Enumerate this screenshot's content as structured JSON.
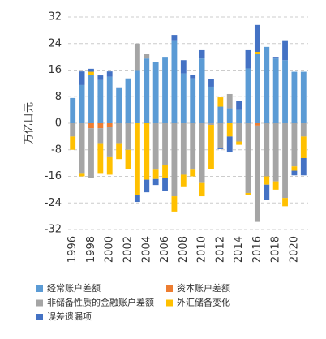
{
  "chart_data": {
    "type": "bar",
    "stacked": true,
    "y_label": "万亿日元",
    "categories": [
      "1996",
      null,
      "1998",
      null,
      "2000",
      null,
      "2002",
      null,
      "2004",
      null,
      "2006",
      null,
      "2008",
      null,
      "2010",
      null,
      "2012",
      null,
      "2014",
      null,
      "2016",
      null,
      "2018",
      null,
      "2020",
      null
    ],
    "series": [
      {
        "name": "经常账户差额",
        "color": "#5b9bd5",
        "values": [
          7.6,
          11.5,
          14.5,
          13,
          14,
          10.5,
          13.5,
          16,
          19.5,
          18.5,
          20,
          25,
          15,
          13.5,
          19.5,
          11,
          5,
          4.5,
          4,
          16.5,
          21,
          23,
          19.5,
          19,
          15.5,
          15.5
        ]
      },
      {
        "name": "资本账户差额",
        "color": "#ed7d31",
        "values": [
          0,
          0,
          -1.5,
          -1.5,
          -1,
          0,
          0,
          0,
          0,
          0,
          0,
          0,
          0,
          0,
          0,
          0,
          0,
          0,
          0,
          0,
          -0.7,
          0,
          0,
          0,
          0,
          0
        ]
      },
      {
        "name": "非储备性质的金融账户差额",
        "color": "#a5a5a5",
        "values": [
          -4,
          -15,
          -15,
          -4.5,
          -9,
          -6,
          -8,
          8,
          1.3,
          -14,
          -12.5,
          -22,
          -15.5,
          -14,
          -18,
          -0.5,
          -7.5,
          4.3,
          -5.5,
          -21,
          -29,
          -16,
          -17.5,
          -22.5,
          -13,
          -4
        ]
      },
      {
        "name": "外汇储备变化",
        "color": "#ffc000",
        "values": [
          -4,
          -1,
          1,
          -9,
          -5.5,
          -4.8,
          -5.7,
          -21.7,
          -17,
          -2.8,
          -4,
          -4.6,
          -3.5,
          -2,
          -4,
          -13.2,
          2.8,
          -4,
          -1,
          -0.5,
          0.5,
          -2.5,
          -2.5,
          -2.5,
          -1.3,
          -6.5
        ]
      },
      {
        "name": "误差遗漏项",
        "color": "#4472c4",
        "values": [
          0,
          4.1,
          0.9,
          1.4,
          1.6,
          0.3,
          0,
          -2,
          -3.8,
          -1.8,
          -4,
          1.6,
          4,
          1,
          2.5,
          2.4,
          -0.3,
          -4.8,
          2.6,
          5.5,
          8.1,
          -4.5,
          0.5,
          6,
          -1.4,
          -5.2
        ]
      }
    ],
    "ylim": [
      -32,
      32
    ],
    "yticks": [
      -32,
      -24,
      -16,
      -8,
      0,
      8,
      16,
      24,
      32
    ],
    "grid": true
  }
}
